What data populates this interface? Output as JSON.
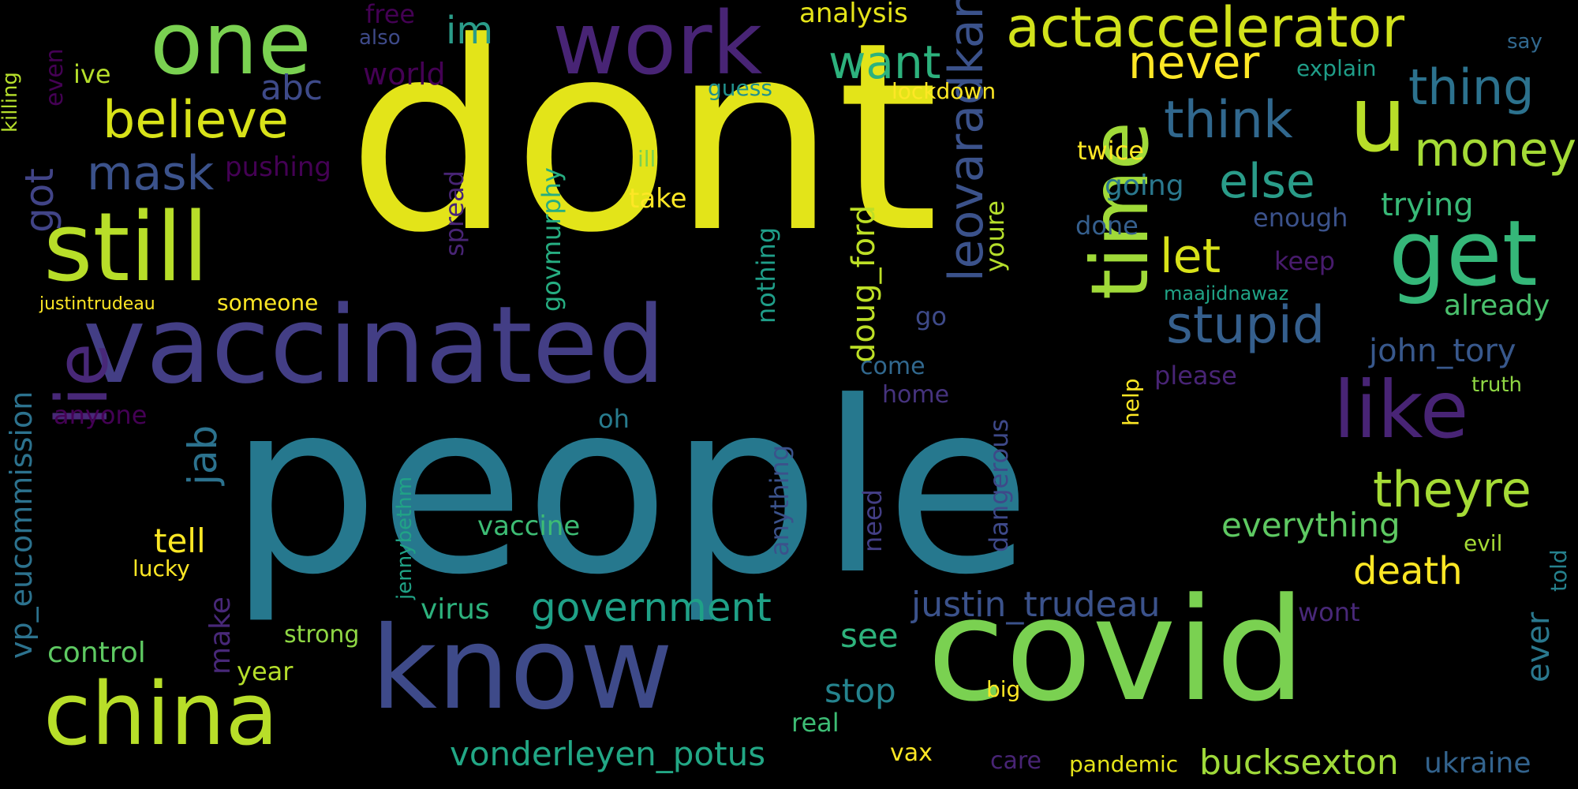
{
  "palette": {
    "background": "#000000",
    "yellow": "#e3e419",
    "lime": "#7ad151",
    "green": "#44bf70",
    "teal": "#21918c",
    "blue": "#31688e",
    "indigo": "#443983",
    "purple": "#440154"
  },
  "words": [
    {
      "text": "dont",
      "color": "#e3e419"
    },
    {
      "text": "people",
      "color": "#26788e"
    },
    {
      "text": "covid",
      "color": "#7ad151"
    },
    {
      "text": "know",
      "color": "#3e4a89"
    },
    {
      "text": "vaccinated",
      "color": "#433e85"
    },
    {
      "text": "still",
      "color": "#b8de29"
    },
    {
      "text": "work",
      "color": "#482475"
    },
    {
      "text": "one",
      "color": "#7ad151"
    },
    {
      "text": "china",
      "color": "#b8de29"
    },
    {
      "text": "get",
      "color": "#35b779"
    },
    {
      "text": "u",
      "color": "#b8de29"
    },
    {
      "text": "like",
      "color": "#482475"
    },
    {
      "text": "time",
      "color": "#a0da39"
    },
    {
      "text": "actaccelerator",
      "color": "#d2e21b"
    },
    {
      "text": "lie",
      "color": "#482878"
    },
    {
      "text": "leovaradkar",
      "color": "#3b528b"
    },
    {
      "text": "think",
      "color": "#31688e"
    },
    {
      "text": "stupid",
      "color": "#355f8d"
    },
    {
      "text": "believe",
      "color": "#d8e219"
    },
    {
      "text": "thing",
      "color": "#2c728e"
    },
    {
      "text": "money",
      "color": "#a5db36"
    },
    {
      "text": "theyre",
      "color": "#a5db36"
    },
    {
      "text": "else",
      "color": "#2a9c89"
    },
    {
      "text": "want",
      "color": "#2db27d"
    },
    {
      "text": "never",
      "color": "#fde725"
    },
    {
      "text": "mask",
      "color": "#3b528b"
    },
    {
      "text": "let",
      "color": "#d8e219"
    },
    {
      "text": "government",
      "color": "#1fa187"
    },
    {
      "text": "justin_trudeau",
      "color": "#3b528b"
    },
    {
      "text": "vonderleyen_potus",
      "color": "#22a785"
    },
    {
      "text": "bucksexton",
      "color": "#9fda3a"
    },
    {
      "text": "everything",
      "color": "#5ec962"
    },
    {
      "text": "vp_eucommission",
      "color": "#2c728e"
    },
    {
      "text": "doug_ford",
      "color": "#bddf26"
    },
    {
      "text": "jab",
      "color": "#2c728e"
    },
    {
      "text": "got",
      "color": "#414487"
    },
    {
      "text": "john_tory",
      "color": "#38588c"
    },
    {
      "text": "death",
      "color": "#fde725"
    },
    {
      "text": "ukraine",
      "color": "#33638d"
    },
    {
      "text": "ever",
      "color": "#2a788e"
    },
    {
      "text": "trying",
      "color": "#38b977"
    },
    {
      "text": "stop",
      "color": "#25838e"
    },
    {
      "text": "see",
      "color": "#2eb37c"
    },
    {
      "text": "tell",
      "color": "#fde725"
    },
    {
      "text": "analysis",
      "color": "#e5e419"
    },
    {
      "text": "already",
      "color": "#4ac16d"
    },
    {
      "text": "going",
      "color": "#2a788e"
    },
    {
      "text": "virus",
      "color": "#2db27d"
    },
    {
      "text": "vaccine",
      "color": "#3dbc74"
    },
    {
      "text": "control",
      "color": "#5ec962"
    },
    {
      "text": "make",
      "color": "#482878"
    },
    {
      "text": "nothing",
      "color": "#1f9e89"
    },
    {
      "text": "anything",
      "color": "#3b528b"
    },
    {
      "text": "govmurphy",
      "color": "#26ad81"
    },
    {
      "text": "spread",
      "color": "#482475"
    },
    {
      "text": "youre",
      "color": "#b5de2b"
    },
    {
      "text": "need",
      "color": "#433e85"
    },
    {
      "text": "dangerous",
      "color": "#3e4989"
    },
    {
      "text": "pushing",
      "color": "#440154"
    },
    {
      "text": "world",
      "color": "#440154"
    },
    {
      "text": "im",
      "color": "#2a9c89"
    },
    {
      "text": "abc",
      "color": "#3e4a89"
    },
    {
      "text": "enough",
      "color": "#3b528b"
    },
    {
      "text": "real",
      "color": "#3dbc74"
    },
    {
      "text": "year",
      "color": "#b5de2b"
    },
    {
      "text": "strong",
      "color": "#8fd744"
    },
    {
      "text": "anyone",
      "color": "#440154"
    },
    {
      "text": "someone",
      "color": "#fde725"
    },
    {
      "text": "take",
      "color": "#fde725"
    },
    {
      "text": "twice",
      "color": "#fde725"
    },
    {
      "text": "done",
      "color": "#355f8d"
    },
    {
      "text": "please",
      "color": "#482475"
    },
    {
      "text": "keep",
      "color": "#481b6d"
    },
    {
      "text": "wont",
      "color": "#482878"
    },
    {
      "text": "pandemic",
      "color": "#e5e419"
    },
    {
      "text": "care",
      "color": "#482475"
    },
    {
      "text": "vax",
      "color": "#fde725"
    },
    {
      "text": "big",
      "color": "#fde725"
    },
    {
      "text": "come",
      "color": "#31688e"
    },
    {
      "text": "home",
      "color": "#46337e"
    },
    {
      "text": "go",
      "color": "#3e4a89"
    },
    {
      "text": "oh",
      "color": "#287c8e"
    },
    {
      "text": "evil",
      "color": "#a5db36"
    },
    {
      "text": "told",
      "color": "#26828e"
    },
    {
      "text": "help",
      "color": "#fde725"
    },
    {
      "text": "truth",
      "color": "#8fd744"
    },
    {
      "text": "lucky",
      "color": "#fde725"
    },
    {
      "text": "jennybethm",
      "color": "#20a386"
    },
    {
      "text": "ill",
      "color": "#7ad151"
    },
    {
      "text": "guess",
      "color": "#21918c"
    },
    {
      "text": "lockdown",
      "color": "#fde725"
    },
    {
      "text": "explain",
      "color": "#1f9e89"
    },
    {
      "text": "say",
      "color": "#31688e"
    },
    {
      "text": "maajidnawaz",
      "color": "#20a386"
    },
    {
      "text": "free",
      "color": "#440154"
    },
    {
      "text": "also",
      "color": "#3e4a89"
    },
    {
      "text": "ive",
      "color": "#b5de2b"
    },
    {
      "text": "even",
      "color": "#440154"
    },
    {
      "text": "killing",
      "color": "#b5de2b"
    },
    {
      "text": "justintrudeau",
      "color": "#fde725"
    }
  ]
}
